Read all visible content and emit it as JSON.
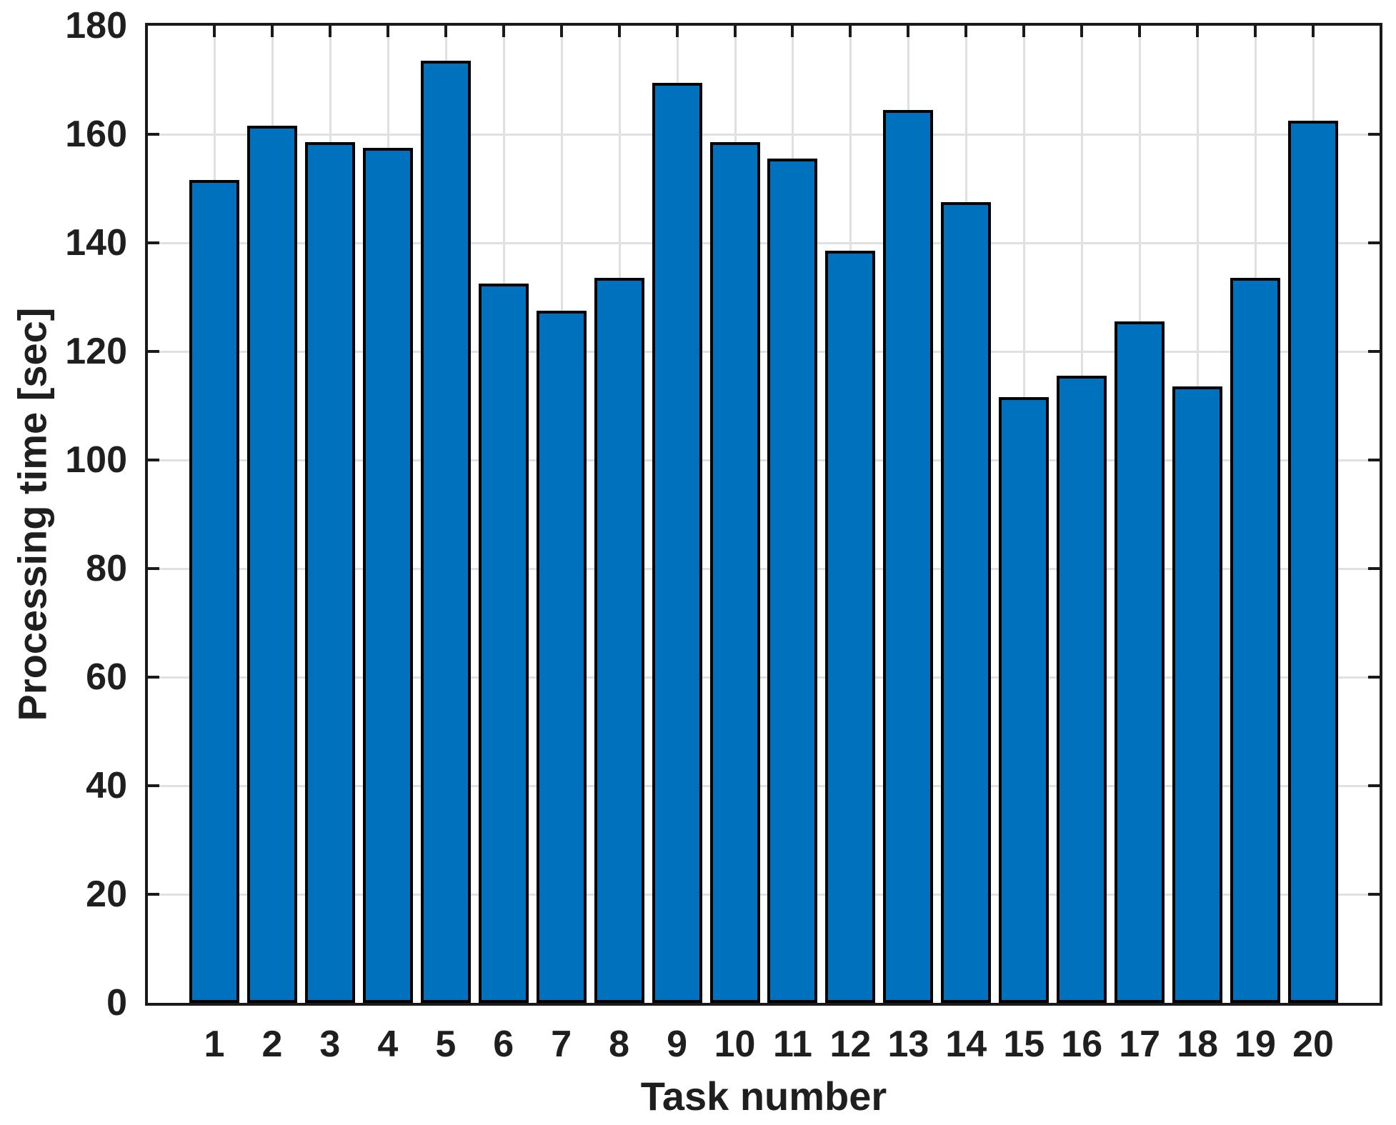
{
  "figure": {
    "background": "#ffffff"
  },
  "chart_data": {
    "type": "bar",
    "title": "",
    "xlabel": "Task number",
    "ylabel": "Processing time [sec]",
    "categories": [
      "1",
      "2",
      "3",
      "4",
      "5",
      "6",
      "7",
      "8",
      "9",
      "10",
      "11",
      "12",
      "13",
      "14",
      "15",
      "16",
      "17",
      "18",
      "19",
      "20"
    ],
    "values": [
      151,
      161,
      158,
      157,
      173,
      132,
      127,
      133,
      169,
      158,
      155,
      138,
      164,
      147,
      111,
      115,
      125,
      113,
      133,
      162
    ],
    "ylim": [
      0,
      180
    ],
    "yticks": [
      0,
      20,
      40,
      60,
      80,
      100,
      120,
      140,
      160,
      180
    ],
    "grid": "on",
    "legend": "none",
    "bar_color": "#0072BD",
    "bar_edge_color": "#000000",
    "grid_color": "#e0e0e0",
    "axis_color": "#1a1a1a",
    "text_color": "#1f1f1f"
  }
}
